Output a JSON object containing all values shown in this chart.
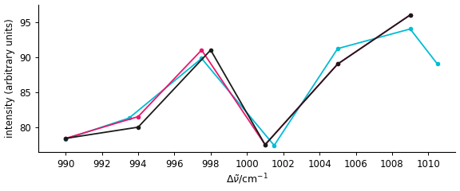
{
  "black_x": [
    990,
    994,
    998,
    1001,
    1005,
    1009
  ],
  "black_y": [
    78.4,
    80.0,
    91.0,
    77.5,
    89.0,
    96.0
  ],
  "red_x": [
    990,
    994,
    997.5,
    1001,
    1005,
    1009
  ],
  "red_y": [
    78.4,
    81.5,
    91.0,
    77.5,
    89.0,
    96.0
  ],
  "blue_x": [
    990,
    993.5,
    997.5,
    1001.5,
    1005,
    1009,
    1010.5
  ],
  "blue_y": [
    78.3,
    81.3,
    89.8,
    77.4,
    91.2,
    94.0,
    89.0
  ],
  "black_color": "#1a1a1a",
  "red_color": "#e8186d",
  "blue_color": "#00bcd4",
  "xlim": [
    988.5,
    1011.5
  ],
  "ylim": [
    76.5,
    97.5
  ],
  "yticks": [
    80,
    85,
    90,
    95
  ],
  "xticks": [
    990,
    992,
    994,
    996,
    998,
    1000,
    1002,
    1004,
    1006,
    1008,
    1010
  ],
  "ylabel": "intensity (arbitrary units)",
  "lw": 1.3,
  "marker_size": 4.0,
  "fig_width": 5.76,
  "fig_height": 2.4,
  "dpi": 100
}
